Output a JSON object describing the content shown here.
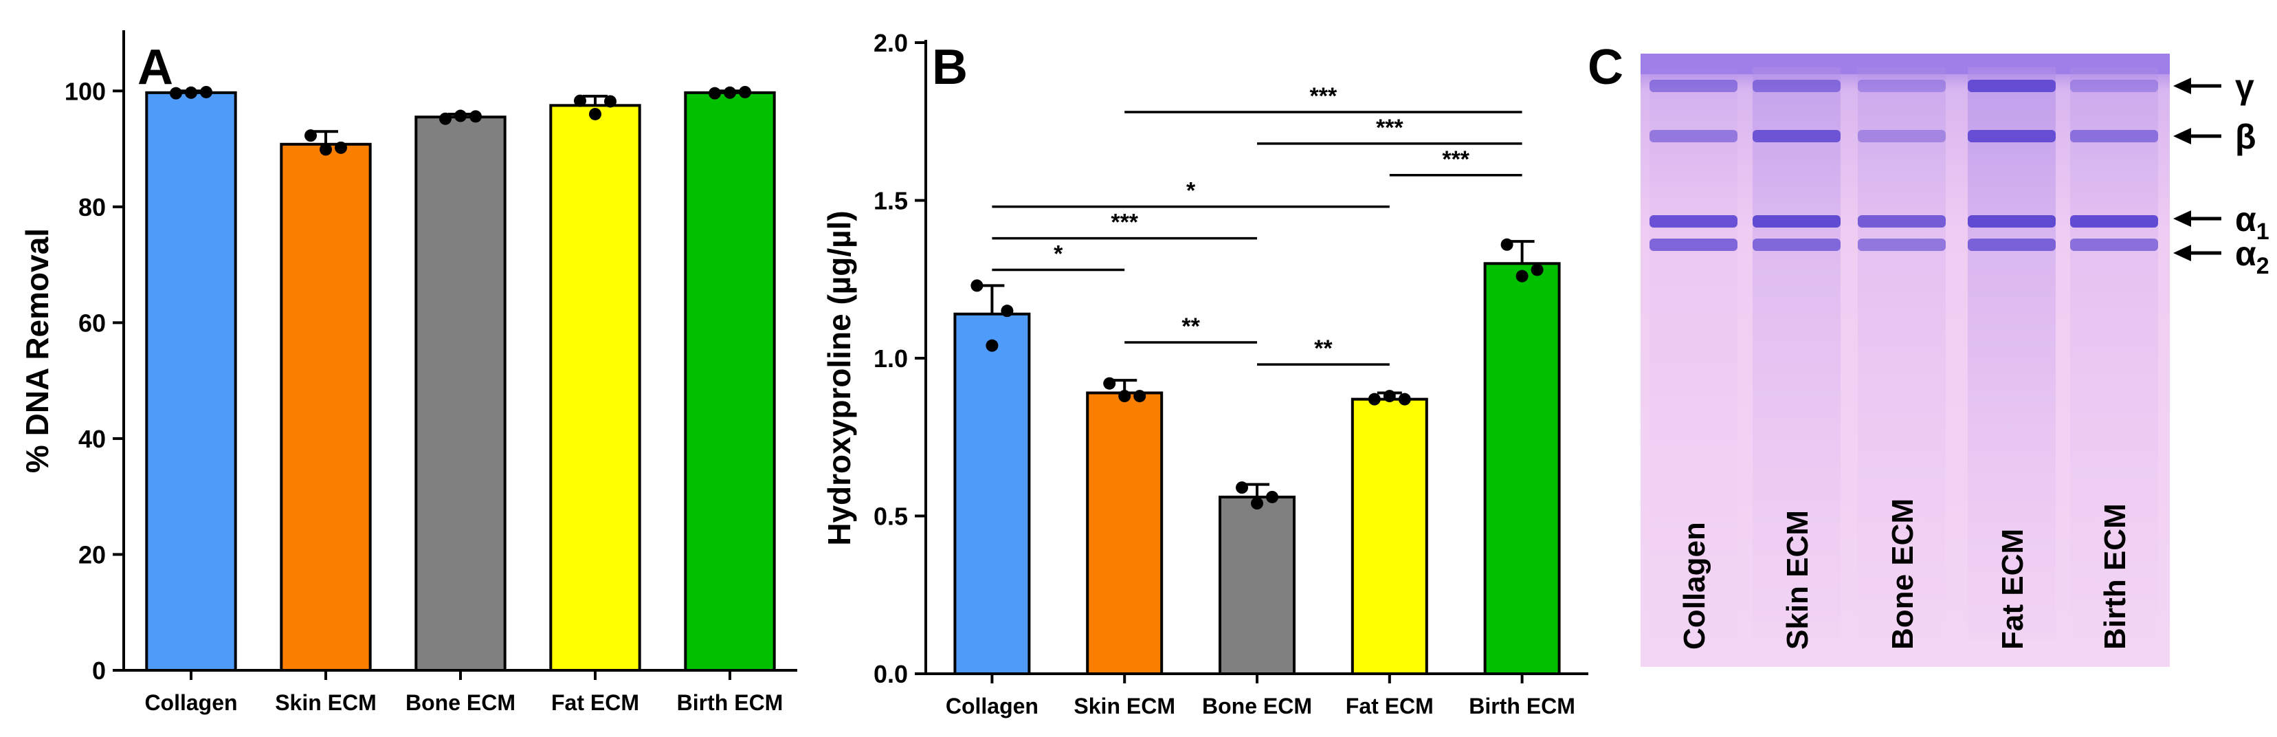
{
  "chart_data": [
    {
      "panel": "A",
      "type": "bar",
      "ylabel": "% DNA  Removal",
      "xlabel": "",
      "ylim": [
        0,
        110
      ],
      "yticks": [
        0,
        20,
        40,
        60,
        80,
        100
      ],
      "categories": [
        "Collagen",
        "Skin ECM",
        "Bone ECM",
        "Fat ECM",
        "Birth ECM"
      ],
      "values": [
        99.7,
        90.8,
        95.5,
        97.5,
        99.7
      ],
      "errors": [
        0.3,
        2.2,
        0.5,
        1.6,
        0.3
      ],
      "points": [
        [
          99.6,
          99.7,
          99.8
        ],
        [
          92.3,
          89.9,
          90.2
        ],
        [
          95.2,
          95.7,
          95.6
        ],
        [
          98.3,
          96.0,
          98.2
        ],
        [
          99.6,
          99.7,
          99.8
        ]
      ],
      "colors": [
        "#4f9bf9",
        "#fa7f00",
        "#808080",
        "#ffff00",
        "#00c000"
      ]
    },
    {
      "panel": "B",
      "type": "bar",
      "ylabel": "Hydroxyproline (µg/µl)",
      "xlabel": "",
      "ylim": [
        0,
        2.0
      ],
      "yticks": [
        "0.0",
        "0.5",
        "1.0",
        "1.5",
        "2.0"
      ],
      "categories": [
        "Collagen",
        "Skin ECM",
        "Bone ECM",
        "Fat ECM",
        "Birth ECM"
      ],
      "values": [
        1.14,
        0.89,
        0.56,
        0.87,
        1.3
      ],
      "errors": [
        0.09,
        0.04,
        0.04,
        0.02,
        0.07
      ],
      "points": [
        [
          1.23,
          1.04,
          1.15
        ],
        [
          0.92,
          0.88,
          0.88
        ],
        [
          0.59,
          0.54,
          0.56
        ],
        [
          0.87,
          0.88,
          0.87
        ],
        [
          1.36,
          1.26,
          1.28
        ]
      ],
      "colors": [
        "#4f9bf9",
        "#fa7f00",
        "#808080",
        "#ffff00",
        "#00c000"
      ],
      "significance": [
        {
          "from": 1,
          "to": 4,
          "y": 1.78,
          "label": "***"
        },
        {
          "from": 2,
          "to": 4,
          "y": 1.68,
          "label": "***"
        },
        {
          "from": 3,
          "to": 4,
          "y": 1.58,
          "label": "***"
        },
        {
          "from": 0,
          "to": 3,
          "y": 1.48,
          "label": "*"
        },
        {
          "from": 0,
          "to": 2,
          "y": 1.38,
          "label": "***"
        },
        {
          "from": 0,
          "to": 1,
          "y": 1.28,
          "label": "*"
        },
        {
          "from": 1,
          "to": 2,
          "y": 1.05,
          "label": "**"
        },
        {
          "from": 2,
          "to": 3,
          "y": 0.98,
          "label": "**"
        }
      ]
    }
  ],
  "gel": {
    "panel": "C",
    "lanes": [
      "Collagen",
      "Skin ECM",
      "Bone ECM",
      "Fat ECM",
      "Birth ECM"
    ],
    "bands": [
      {
        "symbol": "γ",
        "sub": ""
      },
      {
        "symbol": "β",
        "sub": ""
      },
      {
        "symbol": "α",
        "sub": "1"
      },
      {
        "symbol": "α",
        "sub": "2"
      }
    ],
    "colors": {
      "gel_top": "#a07fe8",
      "gel_body": "#eecdf2",
      "band": "#5a44d0"
    }
  }
}
